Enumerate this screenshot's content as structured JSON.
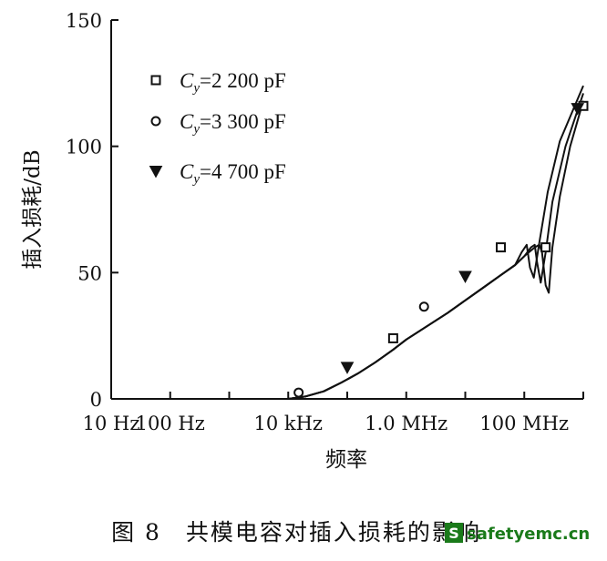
{
  "chart_data": {
    "type": "line",
    "title": "",
    "xlabel": "频率",
    "ylabel": "插入损耗/dB",
    "x_scale": "log",
    "xlim": [
      10,
      1000000000
    ],
    "ylim": [
      0,
      150
    ],
    "x_ticks": [
      {
        "value": 10,
        "label": "10 Hz"
      },
      {
        "value": 100,
        "label": "100 Hz"
      },
      {
        "value": 1000,
        "label": ""
      },
      {
        "value": 10000,
        "label": "10 kHz"
      },
      {
        "value": 100000,
        "label": ""
      },
      {
        "value": 1000000,
        "label": "1.0 MHz"
      },
      {
        "value": 10000000,
        "label": ""
      },
      {
        "value": 100000000,
        "label": "100 MHz"
      },
      {
        "value": 1000000000,
        "label": ""
      }
    ],
    "y_ticks": [
      {
        "value": 0,
        "label": "0"
      },
      {
        "value": 50,
        "label": "50"
      },
      {
        "value": 100,
        "label": "100"
      },
      {
        "value": 150,
        "label": "150"
      }
    ],
    "grid": false,
    "legend_position": "top-left",
    "series": [
      {
        "name": "Cy=2 200 pF",
        "legend": {
          "var": "C",
          "sub": "y",
          "value": "=2 200 pF"
        },
        "marker": "square",
        "x": [
          10000,
          20000,
          40000,
          80000,
          150000,
          300000,
          600000,
          1000000,
          2000000,
          5000000,
          10000000,
          20000000,
          40000000,
          70000000,
          100000000,
          150000000,
          180000000,
          200000000,
          230000000,
          260000000,
          300000000,
          400000000,
          600000000,
          1000000000
        ],
        "y": [
          0,
          1,
          3,
          6.5,
          10,
          14.5,
          19.5,
          23.5,
          28,
          34,
          39,
          44,
          49,
          53,
          56.5,
          60,
          61,
          58,
          45,
          42,
          60,
          80,
          100,
          118
        ],
        "markers_x": [
          600000,
          40000000,
          230000000,
          1000000000
        ],
        "markers_y": [
          24,
          60,
          60,
          116
        ]
      },
      {
        "name": "Cy=3 300 pF",
        "legend": {
          "var": "C",
          "sub": "y",
          "value": "=3 300 pF"
        },
        "marker": "circle",
        "x": [
          10000,
          20000,
          40000,
          80000,
          150000,
          300000,
          600000,
          1000000,
          2000000,
          5000000,
          10000000,
          20000000,
          40000000,
          70000000,
          100000000,
          130000000,
          150000000,
          165000000,
          190000000,
          230000000,
          300000000,
          500000000,
          1000000000
        ],
        "y": [
          0,
          1,
          3,
          6.5,
          10,
          14.5,
          19.5,
          23.5,
          28,
          34,
          39,
          44,
          49,
          53,
          56.5,
          60,
          61,
          54,
          46,
          58,
          78,
          100,
          121
        ],
        "markers_x": [
          15000,
          2000000
        ],
        "markers_y": [
          2.5,
          36.5
        ]
      },
      {
        "name": "Cy=4 700 pF",
        "legend": {
          "var": "C",
          "sub": "y",
          "value": "=4 700 pF"
        },
        "marker": "triangle-down",
        "x": [
          10000,
          20000,
          40000,
          80000,
          150000,
          300000,
          600000,
          1000000,
          2000000,
          5000000,
          10000000,
          20000000,
          40000000,
          70000000,
          90000000,
          110000000,
          125000000,
          145000000,
          180000000,
          250000000,
          400000000,
          1000000000
        ],
        "y": [
          0,
          1,
          3,
          6.5,
          10,
          14.5,
          19.5,
          23.5,
          28,
          34,
          39,
          44,
          49,
          53,
          58,
          61,
          52,
          48,
          62,
          82,
          102,
          124
        ],
        "markers_x": [
          100000,
          10000000,
          800000000
        ],
        "markers_y": [
          12.5,
          48.5,
          115
        ]
      }
    ]
  },
  "caption": "图 8　共模电容对插入损耗的影响",
  "watermark": {
    "badge": "S",
    "text": "safetyemc.cn"
  }
}
